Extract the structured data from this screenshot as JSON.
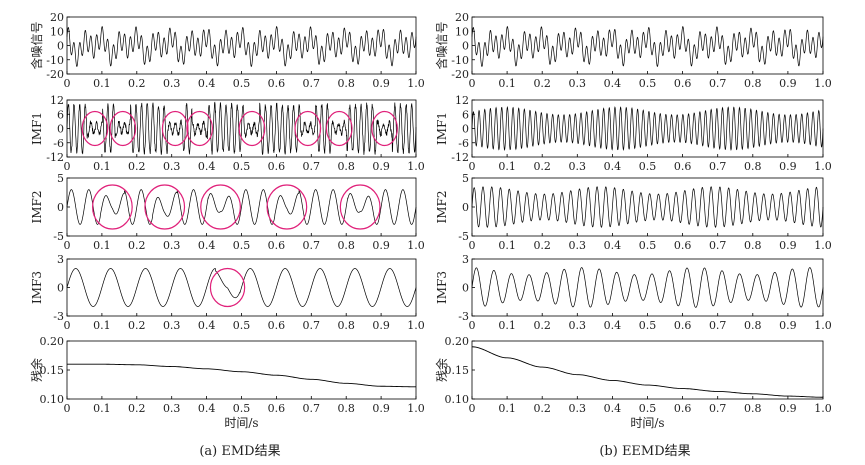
{
  "figure": {
    "xlabel": "时间/s",
    "captions": [
      "(a) EMD结果",
      "(b) EEMD结果"
    ]
  },
  "chart_data": [
    {
      "type": "line",
      "column": "EMD",
      "ylabel": "含噪信号",
      "xlim": [
        0,
        1.0
      ],
      "ylim": [
        -20,
        20
      ],
      "xticks": [
        "0",
        "0.1",
        "0.2",
        "0.3",
        "0.4",
        "0.5",
        "0.6",
        "0.7",
        "0.8",
        "0.9",
        "1.0"
      ],
      "yticks": [
        "20",
        "10",
        "0",
        "-10",
        "-20"
      ],
      "series": [
        {
          "amplitude": 15,
          "components": [
            {
              "freq": 62,
              "amp": 9
            },
            {
              "freq": 20,
              "amp": 6
            },
            {
              "freq": 10,
              "amp": 4
            }
          ]
        }
      ]
    },
    {
      "type": "line",
      "column": "EMD",
      "ylabel": "IMF1",
      "xlim": [
        0,
        1.0
      ],
      "ylim": [
        -12,
        12
      ],
      "xticks": [
        "0",
        "0.1",
        "0.2",
        "0.3",
        "0.4",
        "0.5",
        "0.6",
        "0.7",
        "0.8",
        "0.9",
        "1.0"
      ],
      "yticks": [
        "12",
        "6",
        "0",
        "-6",
        "-12"
      ],
      "series": [
        {
          "amplitude": 10,
          "components": [
            {
              "freq": 62,
              "amp": 10
            }
          ],
          "intermittent": true
        }
      ],
      "highlight_circles": [
        0.08,
        0.16,
        0.31,
        0.38,
        0.53,
        0.69,
        0.78,
        0.91
      ]
    },
    {
      "type": "line",
      "column": "EMD",
      "ylabel": "IMF2",
      "xlim": [
        0,
        1.0
      ],
      "ylim": [
        -5,
        5
      ],
      "xticks": [
        "0",
        "0.1",
        "0.2",
        "0.3",
        "0.4",
        "0.5",
        "0.6",
        "0.7",
        "0.8",
        "0.9",
        "1.0"
      ],
      "yticks": [
        "5",
        "0",
        "-5"
      ],
      "series": [
        {
          "amplitude": 3,
          "components": [
            {
              "freq": 20,
              "amp": 3
            }
          ],
          "mode_mixing": true
        }
      ],
      "highlight_circles": [
        0.13,
        0.28,
        0.44,
        0.63,
        0.84
      ]
    },
    {
      "type": "line",
      "column": "EMD",
      "ylabel": "IMF3",
      "xlim": [
        0,
        1.0
      ],
      "ylim": [
        -3,
        3
      ],
      "xticks": [
        "0",
        "0.1",
        "0.2",
        "0.3",
        "0.4",
        "0.5",
        "0.6",
        "0.7",
        "0.8",
        "0.9",
        "1.0"
      ],
      "yticks": [
        "3",
        "0",
        "-3"
      ],
      "series": [
        {
          "amplitude": 2,
          "components": [
            {
              "freq": 10,
              "amp": 2
            }
          ],
          "mode_mixing": true
        }
      ],
      "highlight_circles": [
        0.46
      ]
    },
    {
      "type": "line",
      "column": "EMD",
      "ylabel": "残余",
      "xlim": [
        0,
        1.0
      ],
      "ylim": [
        0.1,
        0.2
      ],
      "xticks": [
        "0",
        "0.1",
        "0.2",
        "0.3",
        "0.4",
        "0.5",
        "0.6",
        "0.7",
        "0.8",
        "0.9",
        "1.0"
      ],
      "yticks": [
        "0.20",
        "0.15",
        "0.10"
      ],
      "series": [
        {
          "x": [
            0,
            0.1,
            0.2,
            0.3,
            0.4,
            0.5,
            0.6,
            0.7,
            0.8,
            0.9,
            1.0
          ],
          "y": [
            0.16,
            0.16,
            0.159,
            0.156,
            0.152,
            0.147,
            0.141,
            0.134,
            0.127,
            0.122,
            0.121
          ]
        }
      ],
      "show_xlabel": true
    },
    {
      "type": "line",
      "column": "EEMD",
      "ylabel": "含噪信号",
      "xlim": [
        0,
        1.0
      ],
      "ylim": [
        -20,
        20
      ],
      "xticks": [
        "0",
        "0.1",
        "0.2",
        "0.3",
        "0.4",
        "0.5",
        "0.6",
        "0.7",
        "0.8",
        "0.9",
        "1.0"
      ],
      "yticks": [
        "20",
        "10",
        "0",
        "-10",
        "-20"
      ],
      "series": [
        {
          "amplitude": 15,
          "components": [
            {
              "freq": 62,
              "amp": 9
            },
            {
              "freq": 20,
              "amp": 6
            },
            {
              "freq": 10,
              "amp": 4
            }
          ]
        }
      ]
    },
    {
      "type": "line",
      "column": "EEMD",
      "ylabel": "IMF1",
      "xlim": [
        0,
        1.0
      ],
      "ylim": [
        -12,
        12
      ],
      "xticks": [
        "0",
        "0.1",
        "0.2",
        "0.3",
        "0.4",
        "0.5",
        "0.6",
        "0.7",
        "0.8",
        "0.9",
        "1.0"
      ],
      "yticks": [
        "12",
        "6",
        "0",
        "-6",
        "-12"
      ],
      "series": [
        {
          "amplitude": 9,
          "components": [
            {
              "freq": 62,
              "amp": 9
            }
          ]
        }
      ]
    },
    {
      "type": "line",
      "column": "EEMD",
      "ylabel": "IMF2",
      "xlim": [
        0,
        1.0
      ],
      "ylim": [
        -5,
        5
      ],
      "xticks": [
        "0",
        "0.1",
        "0.2",
        "0.3",
        "0.4",
        "0.5",
        "0.6",
        "0.7",
        "0.8",
        "0.9",
        "1.0"
      ],
      "yticks": [
        "5",
        "0",
        "-5"
      ],
      "series": [
        {
          "amplitude": 3.5,
          "components": [
            {
              "freq": 40,
              "amp": 3.5
            }
          ]
        }
      ]
    },
    {
      "type": "line",
      "column": "EEMD",
      "ylabel": "IMF3",
      "xlim": [
        0,
        1.0
      ],
      "ylim": [
        -3,
        3
      ],
      "xticks": [
        "0",
        "0.1",
        "0.2",
        "0.3",
        "0.4",
        "0.5",
        "0.6",
        "0.7",
        "0.8",
        "0.9",
        "1.0"
      ],
      "yticks": [
        "3",
        "0",
        "-3"
      ],
      "series": [
        {
          "amplitude": 2.1,
          "components": [
            {
              "freq": 20,
              "amp": 2.1
            }
          ]
        }
      ]
    },
    {
      "type": "line",
      "column": "EEMD",
      "ylabel": "残余",
      "xlim": [
        0,
        1.0
      ],
      "ylim": [
        0.1,
        0.2
      ],
      "xticks": [
        "0",
        "0.1",
        "0.2",
        "0.3",
        "0.4",
        "0.5",
        "0.6",
        "0.7",
        "0.8",
        "0.9",
        "1.0"
      ],
      "yticks": [
        "0.20",
        "0.15",
        "0.10"
      ],
      "series": [
        {
          "x": [
            0,
            0.1,
            0.2,
            0.3,
            0.4,
            0.5,
            0.6,
            0.7,
            0.8,
            0.9,
            1.0
          ],
          "y": [
            0.19,
            0.171,
            0.155,
            0.142,
            0.132,
            0.124,
            0.118,
            0.113,
            0.109,
            0.105,
            0.103
          ]
        }
      ],
      "show_xlabel": true
    }
  ]
}
